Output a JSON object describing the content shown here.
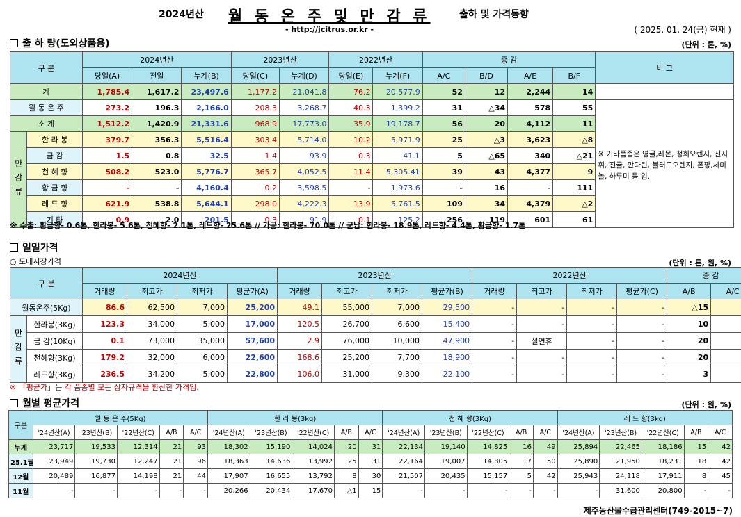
{
  "header": {
    "year": "2024년산",
    "title": "월 동 온 주 및 만 감 류",
    "subtitle": "출하 및 가격동향",
    "url": "- http://jcitrus.or.kr -",
    "date": "( 2025. 01. 24(금) 현재 )"
  },
  "s1": {
    "title": "출 하 량(도외상품용)",
    "unit": "(단위 : 톤, %)",
    "h": {
      "gubun": "구  분",
      "y24": "2024년산",
      "y23": "2023년산",
      "y22": "2022년산",
      "inc": "증    감",
      "bigo": "비 고",
      "c": [
        "당일(A)",
        "전일",
        "누계(B)",
        "당일(C)",
        "누계(D)",
        "당일(E)",
        "누계(F)",
        "A/C",
        "B/D",
        "A/E",
        "B/F"
      ]
    },
    "rows": [
      {
        "n": "계",
        "v": [
          "1,785.4",
          "1,617.2",
          "23,497.6",
          "1,177.2",
          "21,041.8",
          "76.2",
          "20,577.9",
          "52",
          "12",
          "2,244",
          "14"
        ]
      },
      {
        "n": "월 동 온 주",
        "v": [
          "273.2",
          "196.3",
          "2,166.0",
          "208.3",
          "3,268.7",
          "40.3",
          "1,399.2",
          "31",
          "△34",
          "578",
          "55"
        ]
      },
      {
        "n": "소    계",
        "v": [
          "1,512.2",
          "1,420.9",
          "21,331.6",
          "968.9",
          "17,773.0",
          "35.9",
          "19,178.7",
          "56",
          "20",
          "4,112",
          "11"
        ]
      },
      {
        "n": "한 라 봉",
        "v": [
          "379.7",
          "356.3",
          "5,516.4",
          "303.4",
          "5,714.0",
          "10.2",
          "5,971.9",
          "25",
          "△3",
          "3,623",
          "△8"
        ]
      },
      {
        "n": "금    감",
        "v": [
          "1.5",
          "0.8",
          "32.5",
          "1.4",
          "93.9",
          "0.3",
          "41.1",
          "5",
          "△65",
          "340",
          "△21"
        ]
      },
      {
        "n": "천 혜 향",
        "v": [
          "508.2",
          "523.0",
          "5,776.7",
          "365.7",
          "4,052.5",
          "11.4",
          "5,305.41",
          "39",
          "43",
          "4,377",
          "9"
        ]
      },
      {
        "n": "황 금 향",
        "v": [
          "-",
          "-",
          "4,160.4",
          "0.2",
          "3,598.5",
          "-",
          "1,973.6",
          "-",
          "16",
          "-",
          "111"
        ]
      },
      {
        "n": "레 드 향",
        "v": [
          "621.9",
          "538.8",
          "5,644.1",
          "298.0",
          "4,222.3",
          "13.9",
          "5,761.5",
          "109",
          "34",
          "4,379",
          "△2"
        ]
      },
      {
        "n": "기    타",
        "v": [
          "0.9",
          "2.0",
          "201.5",
          "0.3",
          "91.9",
          "0.1",
          "125.2",
          "256",
          "119",
          "601",
          "61"
        ]
      }
    ],
    "mangam": "만감류",
    "remark": "※ 기타품종은 영귤,레몬, 청희오렌지, 진지휘, 진귤, 만다린, 블러드오렌지, 폰깡,세미놀, 하루미 등 임.",
    "note": "※ 수출: 황금향- 0.6톤, 한라봉- 5.6톤, 천혜향- 2.1톤, 레드향- 25.6톤  //  가공:  한라봉- 70.0톤  //  군납: 한라봉- 18.9톤, 레드향- 4.4톤, 황금향- 1.7톤"
  },
  "s2": {
    "title": "일일가격",
    "sub": "○ 도매시장가격",
    "unit": "(단위 : 톤, 원, %)",
    "h": {
      "gubun": "구    분",
      "y24": "2024년산",
      "y23": "2023년산",
      "y22": "2022년산",
      "inc": "증    감",
      "c": [
        "거래량",
        "최고가",
        "최저가",
        "평균가(A)",
        "거래량",
        "최고가",
        "최저가",
        "평균가(B)",
        "거래량",
        "최고가",
        "최저가",
        "평균가(C)",
        "A/B",
        "A/C"
      ]
    },
    "rows": [
      {
        "n": "월동온주(5Kg)",
        "v": [
          "86.6",
          "62,500",
          "7,000",
          "25,200",
          "49.1",
          "55,000",
          "7,000",
          "29,500",
          "-",
          "-",
          "-",
          "-",
          "△15",
          "-"
        ]
      },
      {
        "n": "한라봉(3Kg)",
        "v": [
          "123.3",
          "34,000",
          "5,000",
          "17,000",
          "120.5",
          "26,700",
          "6,600",
          "15,400",
          "-",
          "-",
          "-",
          "-",
          "10",
          "-"
        ]
      },
      {
        "n": "금 감(10Kg)",
        "v": [
          "0.1",
          "73,000",
          "35,000",
          "57,600",
          "2.9",
          "76,000",
          "10,000",
          "47,900",
          "-",
          "설연휴",
          "-",
          "-",
          "20",
          "-"
        ]
      },
      {
        "n": "천혜향(3Kg)",
        "v": [
          "179.2",
          "32,000",
          "6,000",
          "22,600",
          "168.6",
          "25,200",
          "7,700",
          "18,900",
          "-",
          "-",
          "-",
          "-",
          "20",
          "-"
        ]
      },
      {
        "n": "레드향(3Kg)",
        "v": [
          "236.5",
          "34,200",
          "5,000",
          "22,800",
          "106.0",
          "31,000",
          "9,300",
          "22,100",
          "-",
          "-",
          "-",
          "-",
          "3",
          "-"
        ]
      }
    ],
    "mangam": "만감류",
    "note": "※ 「평균가」는 각 품종별 모든 상자규격을 환산한 가격임."
  },
  "s3": {
    "title": "월별 평균가격",
    "unit": "(단위 : 원, %)",
    "h": {
      "gubun": "구분",
      "groups": [
        "월 동 온 주(5Kg)",
        "한  라  봉(3kg)",
        "천 혜 향(3Kg)",
        "레 드 향(3kg)"
      ],
      "c": [
        "'24년산(A)",
        "'23년산(B)",
        "'22년산(C)",
        "A/B",
        "A/C"
      ]
    },
    "rows": [
      {
        "n": "누계",
        "v": [
          "23,717",
          "19,533",
          "12,314",
          "21",
          "93",
          "18,302",
          "15,190",
          "14,024",
          "20",
          "31",
          "22,134",
          "19,140",
          "14,825",
          "16",
          "49",
          "25,894",
          "22,465",
          "18,186",
          "15",
          "42"
        ]
      },
      {
        "n": "25.1월",
        "v": [
          "23,949",
          "19,730",
          "12,247",
          "21",
          "96",
          "18,363",
          "14,636",
          "13,992",
          "25",
          "31",
          "22,164",
          "19,007",
          "14,805",
          "17",
          "50",
          "25,890",
          "21,950",
          "18,231",
          "18",
          "42"
        ]
      },
      {
        "n": "12월",
        "v": [
          "20,489",
          "16,877",
          "14,198",
          "21",
          "44",
          "17,907",
          "16,655",
          "13,792",
          "8",
          "30",
          "21,507",
          "20,435",
          "15,157",
          "5",
          "42",
          "25,943",
          "24,118",
          "17,911",
          "8",
          "45"
        ]
      },
      {
        "n": "11월",
        "v": [
          "-",
          "-",
          "-",
          "-",
          "-",
          "20,266",
          "20,434",
          "17,670",
          "△1",
          "15",
          "-",
          "-",
          "-",
          "-",
          "-",
          "-",
          "31,600",
          "20,800",
          "-",
          "-"
        ]
      }
    ]
  },
  "footer": "제주농산물수급관리센터(749-2015~7)"
}
